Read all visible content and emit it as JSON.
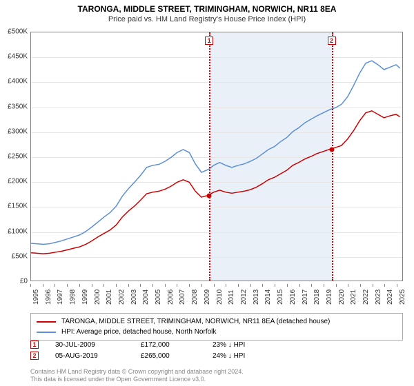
{
  "title": "TARONGA, MIDDLE STREET, TRIMINGHAM, NORWICH, NR11 8EA",
  "subtitle": "Price paid vs. HM Land Registry's House Price Index (HPI)",
  "chart": {
    "type": "line",
    "background_color": "#ffffff",
    "grid_color": "#e6e6e6",
    "axis_color": "#808080",
    "x_start": 1995,
    "x_end": 2025.5,
    "xticks": [
      1995,
      1996,
      1997,
      1998,
      1999,
      2000,
      2001,
      2002,
      2003,
      2004,
      2005,
      2006,
      2007,
      2008,
      2009,
      2010,
      2011,
      2012,
      2013,
      2014,
      2015,
      2016,
      2017,
      2018,
      2019,
      2020,
      2021,
      2022,
      2023,
      2024,
      2025
    ],
    "ylim": [
      0,
      500000
    ],
    "ytick_step": 50000,
    "yticks_labels": [
      "£0",
      "£50K",
      "£100K",
      "£150K",
      "£200K",
      "£250K",
      "£300K",
      "£350K",
      "£400K",
      "£450K",
      "£500K"
    ],
    "label_fontsize": 10,
    "series": [
      {
        "name": "TARONGA, MIDDLE STREET, TRIMINGHAM, NORWICH, NR11 8EA (detached house)",
        "color": "#cc0000",
        "width": 1.5,
        "points": [
          [
            1995.0,
            56000
          ],
          [
            1995.5,
            55000
          ],
          [
            1996.0,
            54000
          ],
          [
            1996.5,
            55000
          ],
          [
            1997.0,
            57000
          ],
          [
            1997.5,
            59000
          ],
          [
            1998.0,
            62000
          ],
          [
            1998.5,
            65000
          ],
          [
            1999.0,
            68000
          ],
          [
            1999.5,
            73000
          ],
          [
            2000.0,
            80000
          ],
          [
            2000.5,
            88000
          ],
          [
            2001.0,
            95000
          ],
          [
            2001.5,
            102000
          ],
          [
            2002.0,
            112000
          ],
          [
            2002.5,
            128000
          ],
          [
            2003.0,
            140000
          ],
          [
            2003.5,
            150000
          ],
          [
            2004.0,
            162000
          ],
          [
            2004.5,
            175000
          ],
          [
            2005.0,
            178000
          ],
          [
            2005.5,
            180000
          ],
          [
            2006.0,
            184000
          ],
          [
            2006.5,
            190000
          ],
          [
            2007.0,
            198000
          ],
          [
            2007.5,
            203000
          ],
          [
            2008.0,
            198000
          ],
          [
            2008.5,
            180000
          ],
          [
            2009.0,
            168000
          ],
          [
            2009.58,
            172000
          ],
          [
            2010.0,
            178000
          ],
          [
            2010.5,
            182000
          ],
          [
            2011.0,
            178000
          ],
          [
            2011.5,
            176000
          ],
          [
            2012.0,
            178000
          ],
          [
            2012.5,
            180000
          ],
          [
            2013.0,
            183000
          ],
          [
            2013.5,
            188000
          ],
          [
            2014.0,
            195000
          ],
          [
            2014.5,
            203000
          ],
          [
            2015.0,
            208000
          ],
          [
            2015.5,
            215000
          ],
          [
            2016.0,
            222000
          ],
          [
            2016.5,
            232000
          ],
          [
            2017.0,
            238000
          ],
          [
            2017.5,
            245000
          ],
          [
            2018.0,
            250000
          ],
          [
            2018.5,
            256000
          ],
          [
            2019.0,
            260000
          ],
          [
            2019.6,
            265000
          ],
          [
            2020.0,
            268000
          ],
          [
            2020.5,
            272000
          ],
          [
            2021.0,
            285000
          ],
          [
            2021.5,
            302000
          ],
          [
            2022.0,
            322000
          ],
          [
            2022.5,
            338000
          ],
          [
            2023.0,
            342000
          ],
          [
            2023.5,
            335000
          ],
          [
            2024.0,
            328000
          ],
          [
            2024.5,
            332000
          ],
          [
            2025.0,
            335000
          ],
          [
            2025.3,
            330000
          ]
        ]
      },
      {
        "name": "HPI: Average price, detached house, North Norfolk",
        "color": "#5b8fd6",
        "width": 1.5,
        "points": [
          [
            1995.0,
            75000
          ],
          [
            1995.5,
            74000
          ],
          [
            1996.0,
            73000
          ],
          [
            1996.5,
            74000
          ],
          [
            1997.0,
            77000
          ],
          [
            1997.5,
            80000
          ],
          [
            1998.0,
            84000
          ],
          [
            1998.5,
            88000
          ],
          [
            1999.0,
            92000
          ],
          [
            1999.5,
            99000
          ],
          [
            2000.0,
            108000
          ],
          [
            2000.5,
            118000
          ],
          [
            2001.0,
            128000
          ],
          [
            2001.5,
            137000
          ],
          [
            2002.0,
            150000
          ],
          [
            2002.5,
            170000
          ],
          [
            2003.0,
            185000
          ],
          [
            2003.5,
            198000
          ],
          [
            2004.0,
            212000
          ],
          [
            2004.5,
            228000
          ],
          [
            2005.0,
            232000
          ],
          [
            2005.5,
            234000
          ],
          [
            2006.0,
            240000
          ],
          [
            2006.5,
            248000
          ],
          [
            2007.0,
            258000
          ],
          [
            2007.5,
            264000
          ],
          [
            2008.0,
            258000
          ],
          [
            2008.5,
            235000
          ],
          [
            2009.0,
            218000
          ],
          [
            2009.58,
            224000
          ],
          [
            2010.0,
            232000
          ],
          [
            2010.5,
            238000
          ],
          [
            2011.0,
            232000
          ],
          [
            2011.5,
            228000
          ],
          [
            2012.0,
            232000
          ],
          [
            2012.5,
            235000
          ],
          [
            2013.0,
            240000
          ],
          [
            2013.5,
            246000
          ],
          [
            2014.0,
            255000
          ],
          [
            2014.5,
            264000
          ],
          [
            2015.0,
            270000
          ],
          [
            2015.5,
            280000
          ],
          [
            2016.0,
            288000
          ],
          [
            2016.5,
            300000
          ],
          [
            2017.0,
            308000
          ],
          [
            2017.5,
            318000
          ],
          [
            2018.0,
            325000
          ],
          [
            2018.5,
            332000
          ],
          [
            2019.0,
            338000
          ],
          [
            2019.6,
            345000
          ],
          [
            2020.0,
            348000
          ],
          [
            2020.5,
            355000
          ],
          [
            2021.0,
            370000
          ],
          [
            2021.5,
            393000
          ],
          [
            2022.0,
            418000
          ],
          [
            2022.5,
            438000
          ],
          [
            2023.0,
            443000
          ],
          [
            2023.5,
            435000
          ],
          [
            2024.0,
            425000
          ],
          [
            2024.5,
            430000
          ],
          [
            2025.0,
            435000
          ],
          [
            2025.3,
            428000
          ]
        ]
      }
    ],
    "shaded_region": {
      "start": 2009.58,
      "end": 2019.6,
      "color": "#eaf0f8"
    },
    "markers": [
      {
        "label": "1",
        "x": 2009.58,
        "y": 172000,
        "dot_color": "#cc0000"
      },
      {
        "label": "2",
        "x": 2019.6,
        "y": 265000,
        "dot_color": "#cc0000"
      }
    ]
  },
  "transactions": [
    {
      "label": "1",
      "date": "30-JUL-2009",
      "price": "£172,000",
      "delta": "23% ↓ HPI"
    },
    {
      "label": "2",
      "date": "05-AUG-2019",
      "price": "£265,000",
      "delta": "24% ↓ HPI"
    }
  ],
  "footer_line1": "Contains HM Land Registry data © Crown copyright and database right 2024.",
  "footer_line2": "This data is licensed under the Open Government Licence v3.0."
}
